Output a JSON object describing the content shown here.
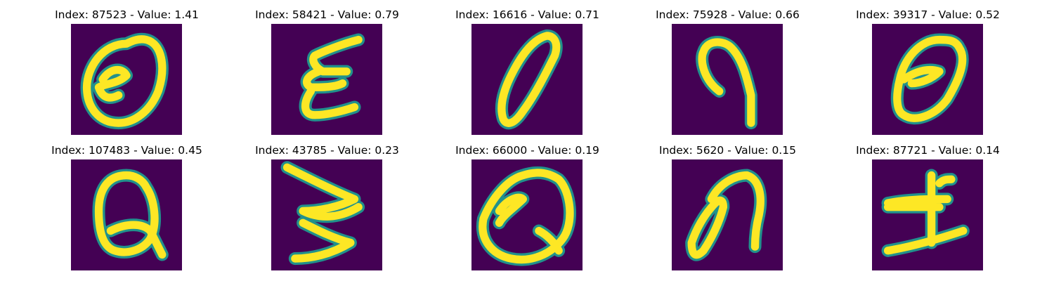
{
  "colors": {
    "background": "#440154",
    "stroke_core": "#fde725",
    "stroke_edge": "#21918c"
  },
  "panels": [
    {
      "title": "Index: 87523 - Value: 1.41",
      "glyph": "0-with-e"
    },
    {
      "title": "Index: 58421 - Value: 0.79",
      "glyph": "E"
    },
    {
      "title": "Index: 16616 - Value: 0.71",
      "glyph": "0"
    },
    {
      "title": "Index: 75928 - Value: 0.66",
      "glyph": "n"
    },
    {
      "title": "Index: 39317 - Value: 0.52",
      "glyph": "0-with-e"
    },
    {
      "title": "Index: 107483 - Value: 0.45",
      "glyph": "Q"
    },
    {
      "title": "Index: 43785 - Value: 0.23",
      "glyph": "Z-3"
    },
    {
      "title": "Index: 66000 - Value: 0.19",
      "glyph": "Q"
    },
    {
      "title": "Index: 5620 - Value: 0.15",
      "glyph": "on"
    },
    {
      "title": "Index: 87721 - Value: 0.14",
      "glyph": "H"
    }
  ]
}
